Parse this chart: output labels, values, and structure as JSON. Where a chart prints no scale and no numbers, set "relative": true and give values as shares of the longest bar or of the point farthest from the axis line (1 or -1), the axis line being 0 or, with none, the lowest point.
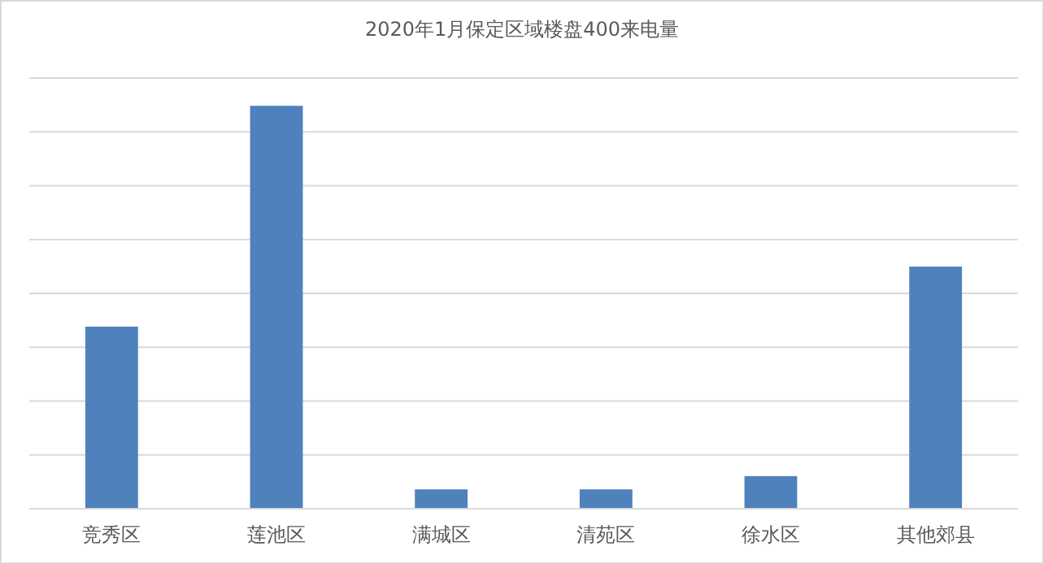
{
  "chart_data": {
    "type": "bar",
    "title": "2020年1月保定区域楼盘400来电量",
    "categories": [
      "竞秀区",
      "莲池区",
      "满城区",
      "清苑区",
      "徐水区",
      "其他郊县"
    ],
    "values": [
      0.452,
      1,
      0.048,
      0.048,
      0.081,
      0.601
    ],
    "color": "#4f81bd",
    "relative": true,
    "grid": "y"
  }
}
